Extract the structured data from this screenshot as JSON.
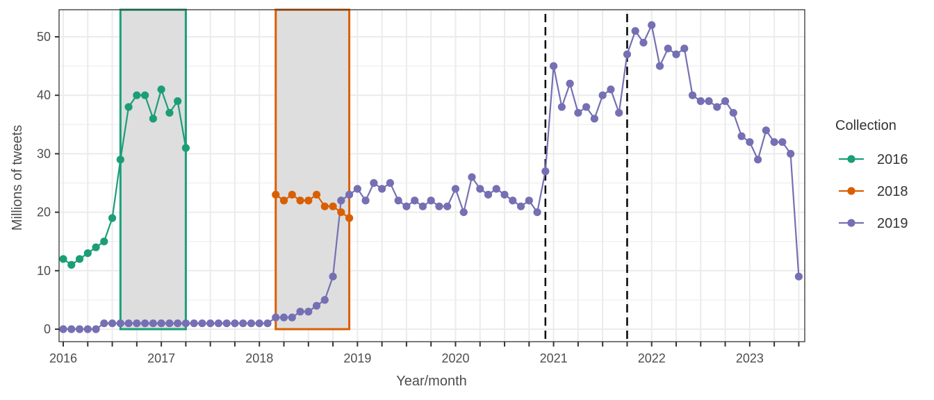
{
  "chart_data": {
    "type": "line",
    "title": "",
    "xlabel": "Year/month",
    "ylabel": "Millions of tweets",
    "ylim": [
      -2.3,
      55
    ],
    "y_ticks": [
      0,
      10,
      20,
      30,
      40,
      50
    ],
    "x_tick_labels": [
      "2016",
      "2017",
      "2018",
      "2019",
      "2020",
      "2021",
      "2022",
      "2023"
    ],
    "x_range": [
      "2016-01",
      "2023-07"
    ],
    "x_tick_interval_months": 3,
    "grid": true,
    "legend": {
      "title": "Collection",
      "position": "right",
      "entries": [
        "2016",
        "2018",
        "2019"
      ]
    },
    "series": [
      {
        "name": "2016",
        "color": "#1b9e77",
        "start": "2016-01",
        "values": [
          12,
          11,
          12,
          13,
          14,
          15,
          19,
          29,
          38,
          40,
          40,
          36,
          41,
          37,
          39,
          31
        ]
      },
      {
        "name": "2018",
        "color": "#d95f02",
        "start": "2018-03",
        "values": [
          23,
          22,
          23,
          22,
          22,
          23,
          21,
          21,
          20,
          19
        ]
      },
      {
        "name": "2019",
        "color": "#7570b3",
        "start": "2016-01",
        "values": [
          0,
          0,
          0,
          0,
          0,
          1,
          1,
          1,
          1,
          1,
          1,
          1,
          1,
          1,
          1,
          1,
          1,
          1,
          1,
          1,
          1,
          1,
          1,
          1,
          1,
          1,
          2,
          2,
          2,
          3,
          3,
          4,
          5,
          9,
          22,
          23,
          24,
          22,
          25,
          24,
          25,
          22,
          21,
          22,
          21,
          22,
          21,
          21,
          24,
          20,
          26,
          24,
          23,
          24,
          23,
          22,
          21,
          22,
          20,
          27,
          45,
          38,
          42,
          37,
          38,
          36,
          40,
          41,
          37,
          47,
          51,
          49,
          52,
          45,
          48,
          47,
          48,
          40,
          39,
          39,
          38,
          39,
          37,
          33,
          32,
          29,
          34,
          32,
          32,
          30,
          9
        ]
      }
    ],
    "annotations": {
      "shaded_boxes": [
        {
          "collection": "2016",
          "from": "2016-08",
          "to": "2017-04",
          "color": "#1b9e77",
          "fill": "#dedede"
        },
        {
          "collection": "2018",
          "from": "2018-03",
          "to": "2018-12",
          "color": "#d95f02",
          "fill": "#dedede"
        }
      ],
      "dashed_vertical_lines": [
        "2020-12",
        "2021-10"
      ]
    }
  }
}
